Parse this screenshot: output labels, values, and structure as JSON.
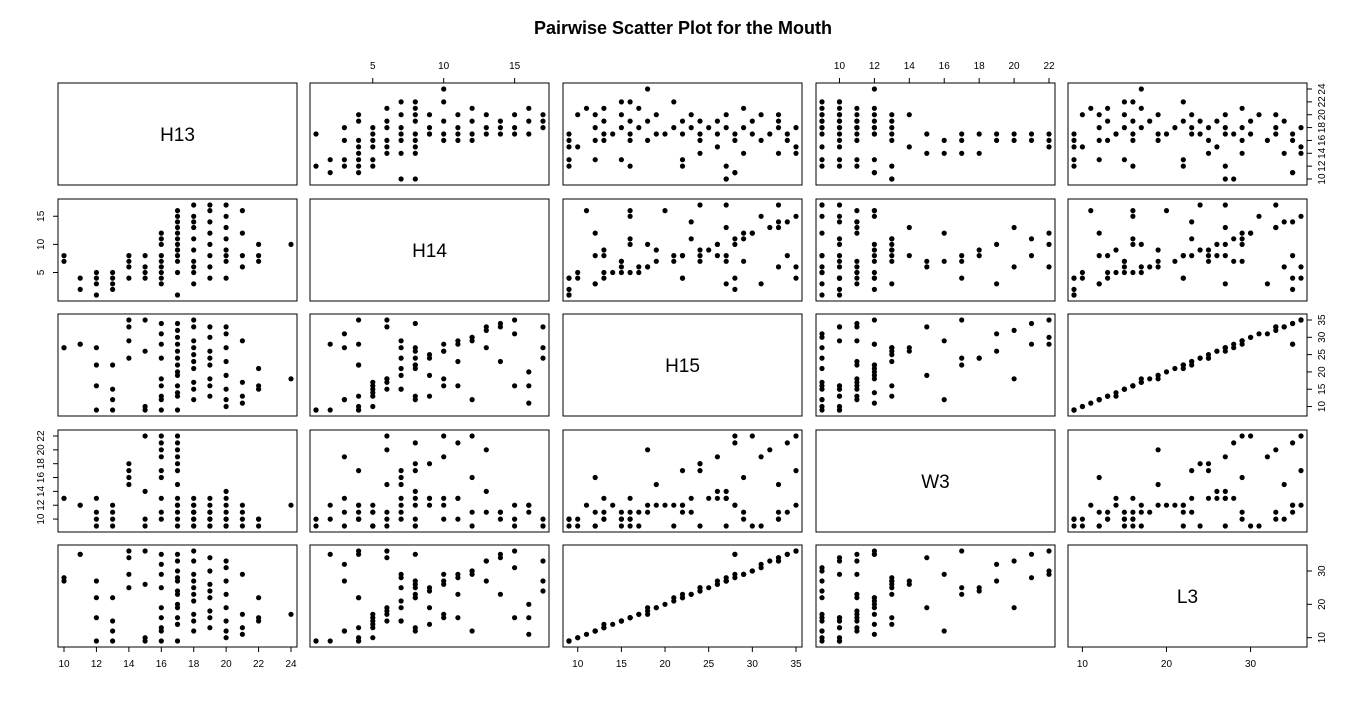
{
  "chart_data": {
    "type": "scatter",
    "title": "Pairwise Scatter Plot for the Mouth",
    "variables": [
      "H13",
      "H14",
      "H15",
      "W3",
      "L3"
    ],
    "ranges": {
      "H13": [
        10,
        24
      ],
      "H14": [
        1,
        17
      ],
      "H15": [
        9,
        35
      ],
      "W3": [
        9,
        22
      ],
      "L3": [
        9,
        36
      ]
    },
    "ticks": {
      "H13": [
        10,
        12,
        14,
        16,
        18,
        20,
        22,
        24
      ],
      "H14": [
        5,
        10,
        15
      ],
      "H15": [
        10,
        15,
        20,
        25,
        30,
        35
      ],
      "W3": [
        10,
        12,
        14,
        16,
        18,
        20,
        22
      ],
      "L3": [
        10,
        20,
        30
      ]
    },
    "observations": [
      [
        10,
        7,
        27,
        13,
        28
      ],
      [
        10,
        8,
        27,
        13,
        27
      ],
      [
        11,
        2,
        28,
        12,
        35
      ],
      [
        11,
        4,
        28,
        12,
        35
      ],
      [
        12,
        1,
        9,
        10,
        9
      ],
      [
        12,
        3,
        27,
        13,
        27
      ],
      [
        12,
        4,
        22,
        11,
        22
      ],
      [
        12,
        5,
        16,
        9,
        16
      ],
      [
        13,
        2,
        9,
        10,
        9
      ],
      [
        13,
        3,
        12,
        11,
        12
      ],
      [
        13,
        4,
        22,
        12,
        22
      ],
      [
        13,
        5,
        15,
        9,
        15
      ],
      [
        14,
        4,
        35,
        17,
        36
      ],
      [
        14,
        6,
        33,
        15,
        34
      ],
      [
        14,
        7,
        29,
        16,
        29
      ],
      [
        14,
        8,
        24,
        18,
        25
      ],
      [
        15,
        4,
        9,
        10,
        9
      ],
      [
        15,
        6,
        35,
        22,
        36
      ],
      [
        15,
        8,
        26,
        14,
        26
      ],
      [
        15,
        5,
        10,
        9,
        10
      ],
      [
        16,
        3,
        31,
        19,
        32
      ],
      [
        16,
        4,
        9,
        10,
        9
      ],
      [
        16,
        5,
        13,
        11,
        13
      ],
      [
        16,
        6,
        18,
        20,
        19
      ],
      [
        16,
        7,
        24,
        17,
        25
      ],
      [
        16,
        8,
        34,
        21,
        35
      ],
      [
        16,
        10,
        28,
        22,
        29
      ],
      [
        16,
        11,
        16,
        13,
        16
      ],
      [
        16,
        12,
        12,
        16,
        12
      ],
      [
        17,
        1,
        9,
        9,
        9
      ],
      [
        17,
        5,
        14,
        12,
        14
      ],
      [
        17,
        7,
        19,
        15,
        19
      ],
      [
        17,
        8,
        22,
        17,
        23
      ],
      [
        17,
        9,
        24,
        18,
        24
      ],
      [
        17,
        10,
        26,
        19,
        27
      ],
      [
        17,
        11,
        28,
        21,
        28
      ],
      [
        17,
        12,
        30,
        22,
        30
      ],
      [
        17,
        13,
        32,
        20,
        33
      ],
      [
        17,
        14,
        34,
        11,
        35
      ],
      [
        17,
        15,
        16,
        10,
        16
      ],
      [
        17,
        16,
        20,
        12,
        20
      ],
      [
        17,
        9,
        13,
        13,
        14
      ],
      [
        18,
        3,
        12,
        9,
        12
      ],
      [
        18,
        5,
        17,
        11,
        17
      ],
      [
        18,
        7,
        21,
        12,
        21
      ],
      [
        18,
        9,
        25,
        13,
        25
      ],
      [
        18,
        11,
        29,
        10,
        29
      ],
      [
        18,
        13,
        33,
        11,
        33
      ],
      [
        18,
        15,
        35,
        12,
        36
      ],
      [
        18,
        17,
        27,
        9,
        27
      ],
      [
        18,
        6,
        15,
        10,
        15
      ],
      [
        18,
        14,
        23,
        11,
        23
      ],
      [
        19,
        4,
        13,
        10,
        13
      ],
      [
        19,
        6,
        18,
        11,
        18
      ],
      [
        19,
        8,
        22,
        12,
        22
      ],
      [
        19,
        10,
        26,
        13,
        26
      ],
      [
        19,
        12,
        30,
        9,
        30
      ],
      [
        19,
        14,
        33,
        10,
        34
      ],
      [
        19,
        16,
        16,
        11,
        16
      ],
      [
        19,
        17,
        24,
        9,
        24
      ],
      [
        20,
        4,
        10,
        10,
        10
      ],
      [
        20,
        7,
        15,
        11,
        15
      ],
      [
        20,
        9,
        19,
        12,
        19
      ],
      [
        20,
        11,
        23,
        13,
        23
      ],
      [
        20,
        13,
        27,
        14,
        27
      ],
      [
        20,
        15,
        31,
        9,
        31
      ],
      [
        20,
        17,
        33,
        10,
        33
      ],
      [
        20,
        8,
        12,
        9,
        12
      ],
      [
        21,
        6,
        17,
        9,
        17
      ],
      [
        21,
        8,
        13,
        10,
        13
      ],
      [
        21,
        12,
        29,
        11,
        29
      ],
      [
        21,
        16,
        11,
        12,
        11
      ],
      [
        22,
        7,
        15,
        10,
        15
      ],
      [
        22,
        8,
        21,
        9,
        22
      ],
      [
        22,
        10,
        16,
        10,
        16
      ],
      [
        24,
        10,
        18,
        12,
        17
      ]
    ]
  }
}
